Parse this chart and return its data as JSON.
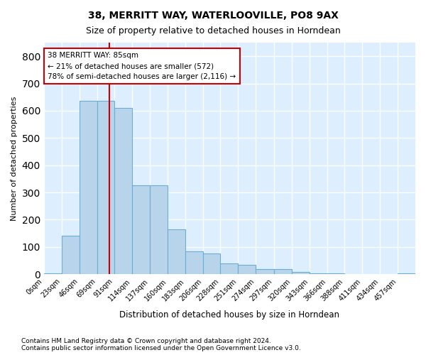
{
  "title": "38, MERRITT WAY, WATERLOOVILLE, PO8 9AX",
  "subtitle": "Size of property relative to detached houses in Horndean",
  "xlabel": "Distribution of detached houses by size in Horndean",
  "ylabel": "Number of detached properties",
  "bar_color": "#b8d4ea",
  "bar_edge_color": "#6aaed6",
  "background_color": "#ddeeff",
  "grid_color": "#ffffff",
  "annotation_text": "38 MERRITT WAY: 85sqm\n← 21% of detached houses are smaller (572)\n78% of semi-detached houses are larger (2,116) →",
  "vline_x": 85,
  "vline_color": "#cc0000",
  "annotation_box_color": "#ffffff",
  "annotation_box_edge": "#cc0000",
  "categories": [
    "0sqm",
    "23sqm",
    "46sqm",
    "69sqm",
    "91sqm",
    "114sqm",
    "137sqm",
    "160sqm",
    "183sqm",
    "206sqm",
    "228sqm",
    "251sqm",
    "274sqm",
    "297sqm",
    "320sqm",
    "343sqm",
    "366sqm",
    "388sqm",
    "411sqm",
    "434sqm",
    "457sqm"
  ],
  "bin_edges": [
    0,
    23,
    46,
    69,
    91,
    114,
    137,
    160,
    183,
    206,
    228,
    251,
    274,
    297,
    320,
    343,
    366,
    388,
    411,
    434,
    457,
    480
  ],
  "bar_heights": [
    3,
    140,
    635,
    635,
    610,
    325,
    325,
    165,
    85,
    75,
    40,
    35,
    18,
    18,
    8,
    3,
    3,
    0,
    0,
    0,
    3
  ],
  "ylim": [
    0,
    850
  ],
  "yticks": [
    0,
    100,
    200,
    300,
    400,
    500,
    600,
    700,
    800
  ],
  "footnote": "Contains HM Land Registry data © Crown copyright and database right 2024.\nContains public sector information licensed under the Open Government Licence v3.0."
}
